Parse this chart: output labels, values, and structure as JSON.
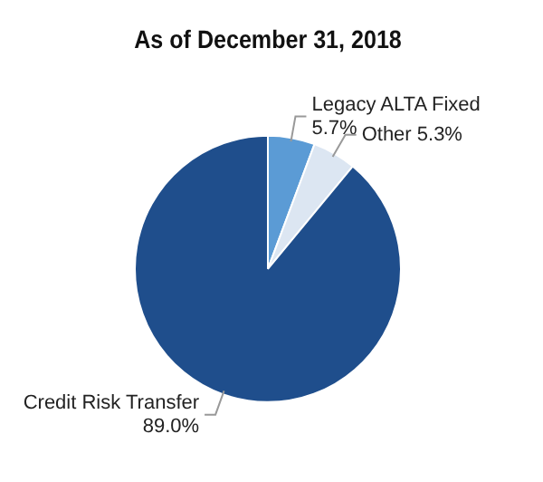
{
  "chart_data": {
    "type": "pie",
    "title": "As of December 31, 2018",
    "categories": [
      "Legacy ALTA Fixed",
      "Other",
      "Credit Risk Transfer"
    ],
    "values": [
      5.7,
      5.3,
      89.0
    ],
    "value_labels": [
      "5.7%",
      "5.3%",
      "89.0%"
    ],
    "colors": [
      "#5b9bd5",
      "#dce6f2",
      "#1f4e8c"
    ],
    "legend": false
  }
}
